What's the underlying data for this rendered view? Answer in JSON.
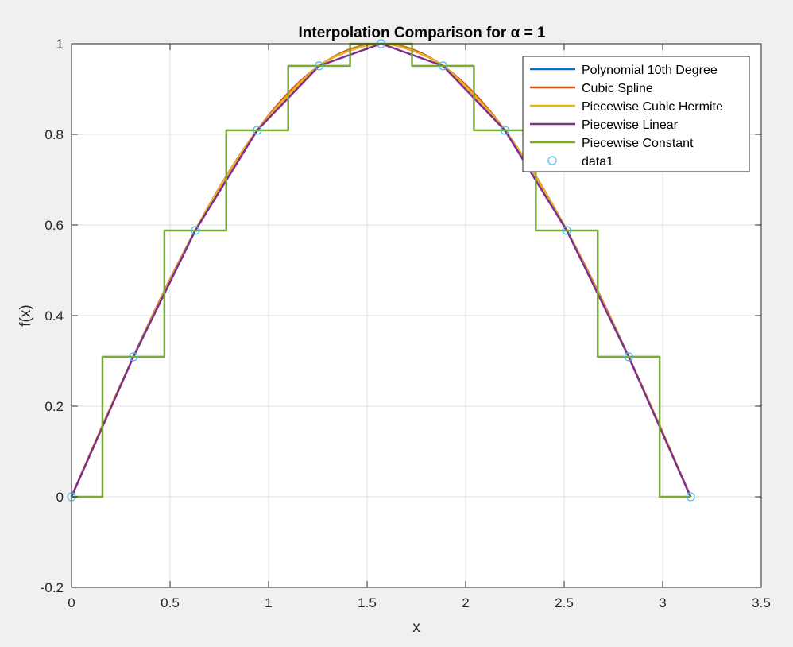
{
  "chart_data": {
    "type": "line",
    "title": "Interpolation Comparison for α = 1",
    "xlabel": "x",
    "ylabel": "f(x)",
    "xlim": [
      0,
      3.5
    ],
    "ylim": [
      -0.2,
      1
    ],
    "x_ticks": [
      "0",
      "0.5",
      "1",
      "1.5",
      "2",
      "2.5",
      "3",
      "3.5"
    ],
    "y_ticks": [
      "-0.2",
      "0",
      "0.2",
      "0.4",
      "0.6",
      "0.8",
      "1"
    ],
    "grid": true,
    "legend_position": "top-right",
    "background_color": "#f0f0f0",
    "axes_color": "#ffffff",
    "data_points": {
      "name": "data1",
      "color": "#4dbeee",
      "x": [
        0,
        0.3142,
        0.6283,
        0.9425,
        1.2566,
        1.5708,
        1.885,
        2.1991,
        2.5133,
        2.8274,
        3.1416
      ],
      "y": [
        0,
        0.309,
        0.5878,
        0.809,
        0.9511,
        1.0,
        0.9511,
        0.809,
        0.5878,
        0.309,
        0
      ]
    },
    "series": [
      {
        "name": "Polynomial 10th Degree",
        "color": "#0072bd",
        "x": [
          0,
          0.1571,
          0.3142,
          0.4712,
          0.6283,
          0.7854,
          0.9425,
          1.0996,
          1.2566,
          1.4137,
          1.5708,
          1.7279,
          1.885,
          2.042,
          2.1991,
          2.3562,
          2.5133,
          2.6704,
          2.8274,
          2.9845,
          3.1416
        ],
        "y": [
          0,
          0.1564,
          0.309,
          0.454,
          0.5878,
          0.7071,
          0.809,
          0.891,
          0.9511,
          0.9877,
          1.0,
          0.9877,
          0.9511,
          0.891,
          0.809,
          0.7071,
          0.5878,
          0.454,
          0.309,
          0.1564,
          0
        ]
      },
      {
        "name": "Cubic Spline",
        "color": "#d95319",
        "x": [
          0,
          0.1571,
          0.3142,
          0.4712,
          0.6283,
          0.7854,
          0.9425,
          1.0996,
          1.2566,
          1.4137,
          1.5708,
          1.7279,
          1.885,
          2.042,
          2.1991,
          2.3562,
          2.5133,
          2.6704,
          2.8274,
          2.9845,
          3.1416
        ],
        "y": [
          0,
          0.1564,
          0.309,
          0.454,
          0.5878,
          0.7071,
          0.809,
          0.891,
          0.9511,
          0.9877,
          1.0,
          0.9877,
          0.9511,
          0.891,
          0.809,
          0.7071,
          0.5878,
          0.454,
          0.309,
          0.1564,
          0
        ]
      },
      {
        "name": "Piecewise Cubic Hermite",
        "color": "#edb120",
        "x": [
          0,
          0.1571,
          0.3142,
          0.4712,
          0.6283,
          0.7854,
          0.9425,
          1.0996,
          1.2566,
          1.4137,
          1.5708,
          1.7279,
          1.885,
          2.042,
          2.1991,
          2.3562,
          2.5133,
          2.6704,
          2.8274,
          2.9845,
          3.1416
        ],
        "y": [
          0,
          0.158,
          0.309,
          0.452,
          0.5878,
          0.706,
          0.809,
          0.887,
          0.9511,
          0.985,
          1.0,
          0.985,
          0.9511,
          0.887,
          0.809,
          0.706,
          0.5878,
          0.452,
          0.309,
          0.158,
          0
        ]
      },
      {
        "name": "Piecewise Linear",
        "color": "#7e2f8e",
        "x": [
          0,
          0.3142,
          0.6283,
          0.9425,
          1.2566,
          1.5708,
          1.885,
          2.1991,
          2.5133,
          2.8274,
          3.1416
        ],
        "y": [
          0,
          0.309,
          0.5878,
          0.809,
          0.9511,
          1.0,
          0.9511,
          0.809,
          0.5878,
          0.309,
          0
        ]
      },
      {
        "name": "Piecewise Constant",
        "color": "#77ac30",
        "step": true,
        "x": [
          0,
          0.1571,
          0.1571,
          0.4712,
          0.4712,
          0.7854,
          0.7854,
          1.0996,
          1.0996,
          1.4137,
          1.4137,
          1.7279,
          1.7279,
          2.042,
          2.042,
          2.3562,
          2.3562,
          2.6704,
          2.6704,
          2.9845,
          2.9845,
          3.1416
        ],
        "y": [
          0,
          0,
          0.309,
          0.309,
          0.5878,
          0.5878,
          0.809,
          0.809,
          0.9511,
          0.9511,
          1.0,
          1.0,
          0.9511,
          0.9511,
          0.809,
          0.809,
          0.5878,
          0.5878,
          0.309,
          0.309,
          0,
          0
        ]
      }
    ]
  }
}
